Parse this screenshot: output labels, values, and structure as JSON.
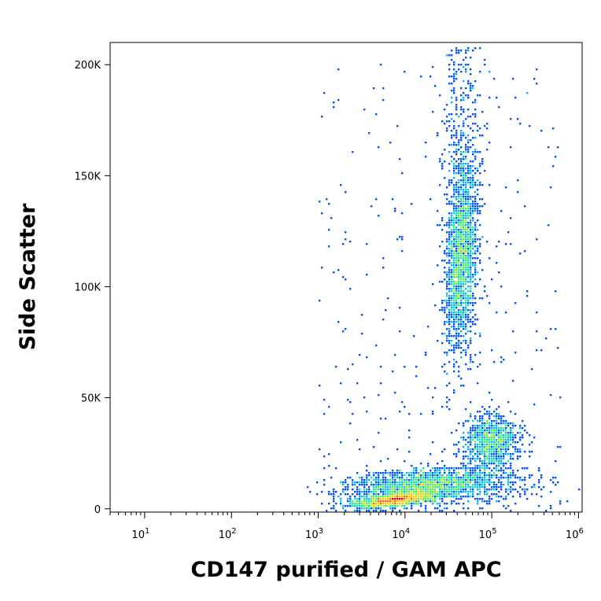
{
  "chart_data": {
    "type": "scatter",
    "style": "density-dot-plot",
    "xlabel": "CD147 purified / GAM APC",
    "ylabel": "Side Scatter",
    "xscale": "log",
    "xlim": [
      4,
      1100000
    ],
    "ylim": [
      -1500,
      210000
    ],
    "x_ticks": [
      {
        "value": 10,
        "base": "10",
        "exp": "1"
      },
      {
        "value": 100,
        "base": "10",
        "exp": "2"
      },
      {
        "value": 1000,
        "base": "10",
        "exp": "3"
      },
      {
        "value": 10000,
        "base": "10",
        "exp": "4"
      },
      {
        "value": 100000,
        "base": "10",
        "exp": "5"
      },
      {
        "value": 1000000,
        "base": "10",
        "exp": "6"
      }
    ],
    "y_ticks": [
      {
        "value": 0,
        "label": "0"
      },
      {
        "value": 50000,
        "label": "50K"
      },
      {
        "value": 100000,
        "label": "100K"
      },
      {
        "value": 150000,
        "label": "150K"
      },
      {
        "value": 200000,
        "label": "200K"
      }
    ],
    "density_colors": [
      "#0000c8",
      "#0050ff",
      "#00b4ff",
      "#00e6b4",
      "#50f050",
      "#c8f000",
      "#ffc800",
      "#ff6400",
      "#e60000"
    ],
    "populations": [
      {
        "x": 8000,
        "y": 4000,
        "count": 1500
      },
      {
        "x": 16000,
        "y": 11000,
        "count": 1300
      },
      {
        "x": 45000,
        "y": 115000,
        "count": 1900
      },
      {
        "x": 100000,
        "y": 30000,
        "count": 900
      },
      {
        "x": 40000,
        "y": 8000,
        "count": 450
      }
    ],
    "grid": false,
    "legend": "none"
  }
}
